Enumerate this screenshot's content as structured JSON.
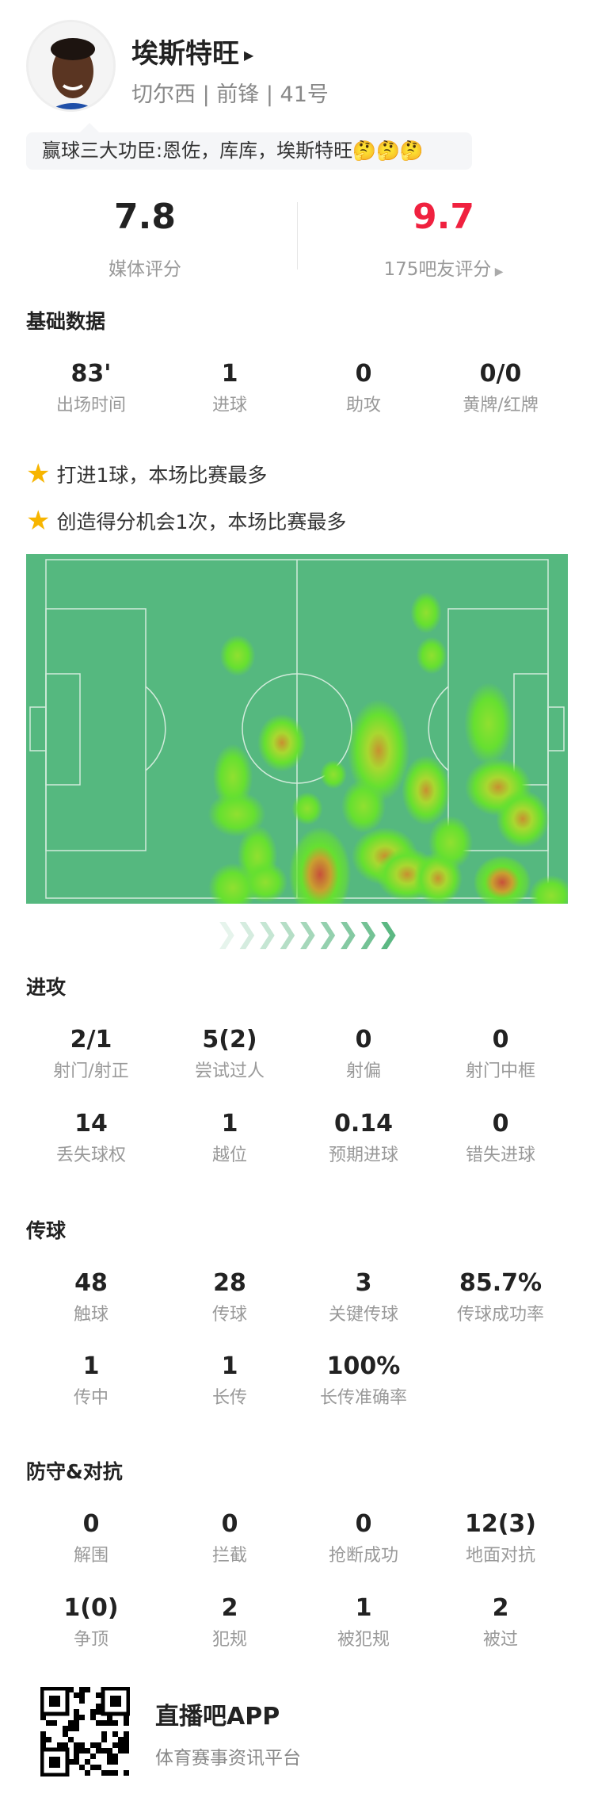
{
  "player": {
    "name": "埃斯特旺",
    "team_line": "切尔西 | 前锋 | 41号",
    "quote": "赢球三大功臣:恩佐，库库，埃斯特旺🤔🤔🤔"
  },
  "ratings": {
    "media_score": "7.8",
    "media_label": "媒体评分",
    "fan_score": "9.7",
    "fan_label": "175吧友评分",
    "fan_color": "#f0213f"
  },
  "basic": {
    "title": "基础数据",
    "items": [
      {
        "v": "83'",
        "l": "出场时间"
      },
      {
        "v": "1",
        "l": "进球"
      },
      {
        "v": "0",
        "l": "助攻"
      },
      {
        "v": "0/0",
        "l": "黄牌/红牌"
      }
    ]
  },
  "highlights": [
    "打进1球，本场比赛最多",
    "创造得分机会1次，本场比赛最多"
  ],
  "attack": {
    "title": "进攻",
    "items": [
      {
        "v": "2/1",
        "l": "射门/射正"
      },
      {
        "v": "5(2)",
        "l": "尝试过人"
      },
      {
        "v": "0",
        "l": "射偏"
      },
      {
        "v": "0",
        "l": "射门中框"
      },
      {
        "v": "14",
        "l": "丢失球权"
      },
      {
        "v": "1",
        "l": "越位"
      },
      {
        "v": "0.14",
        "l": "预期进球"
      },
      {
        "v": "0",
        "l": "错失进球"
      }
    ]
  },
  "passing": {
    "title": "传球",
    "items": [
      {
        "v": "48",
        "l": "触球"
      },
      {
        "v": "28",
        "l": "传球"
      },
      {
        "v": "3",
        "l": "关键传球"
      },
      {
        "v": "85.7%",
        "l": "传球成功率"
      },
      {
        "v": "1",
        "l": "传中"
      },
      {
        "v": "1",
        "l": "长传"
      },
      {
        "v": "100%",
        "l": "长传准确率"
      }
    ]
  },
  "defense": {
    "title": "防守&对抗",
    "items": [
      {
        "v": "0",
        "l": "解围"
      },
      {
        "v": "0",
        "l": "拦截"
      },
      {
        "v": "0",
        "l": "抢断成功"
      },
      {
        "v": "12(3)",
        "l": "地面对抗"
      },
      {
        "v": "1(0)",
        "l": "争顶"
      },
      {
        "v": "2",
        "l": "犯规"
      },
      {
        "v": "1",
        "l": "被犯规"
      },
      {
        "v": "2",
        "l": "被过"
      }
    ]
  },
  "footer": {
    "app_name": "直播吧APP",
    "tagline": "体育赛事资讯平台"
  },
  "colors": {
    "pitch": "#55b87f",
    "star": "#f7b500"
  }
}
